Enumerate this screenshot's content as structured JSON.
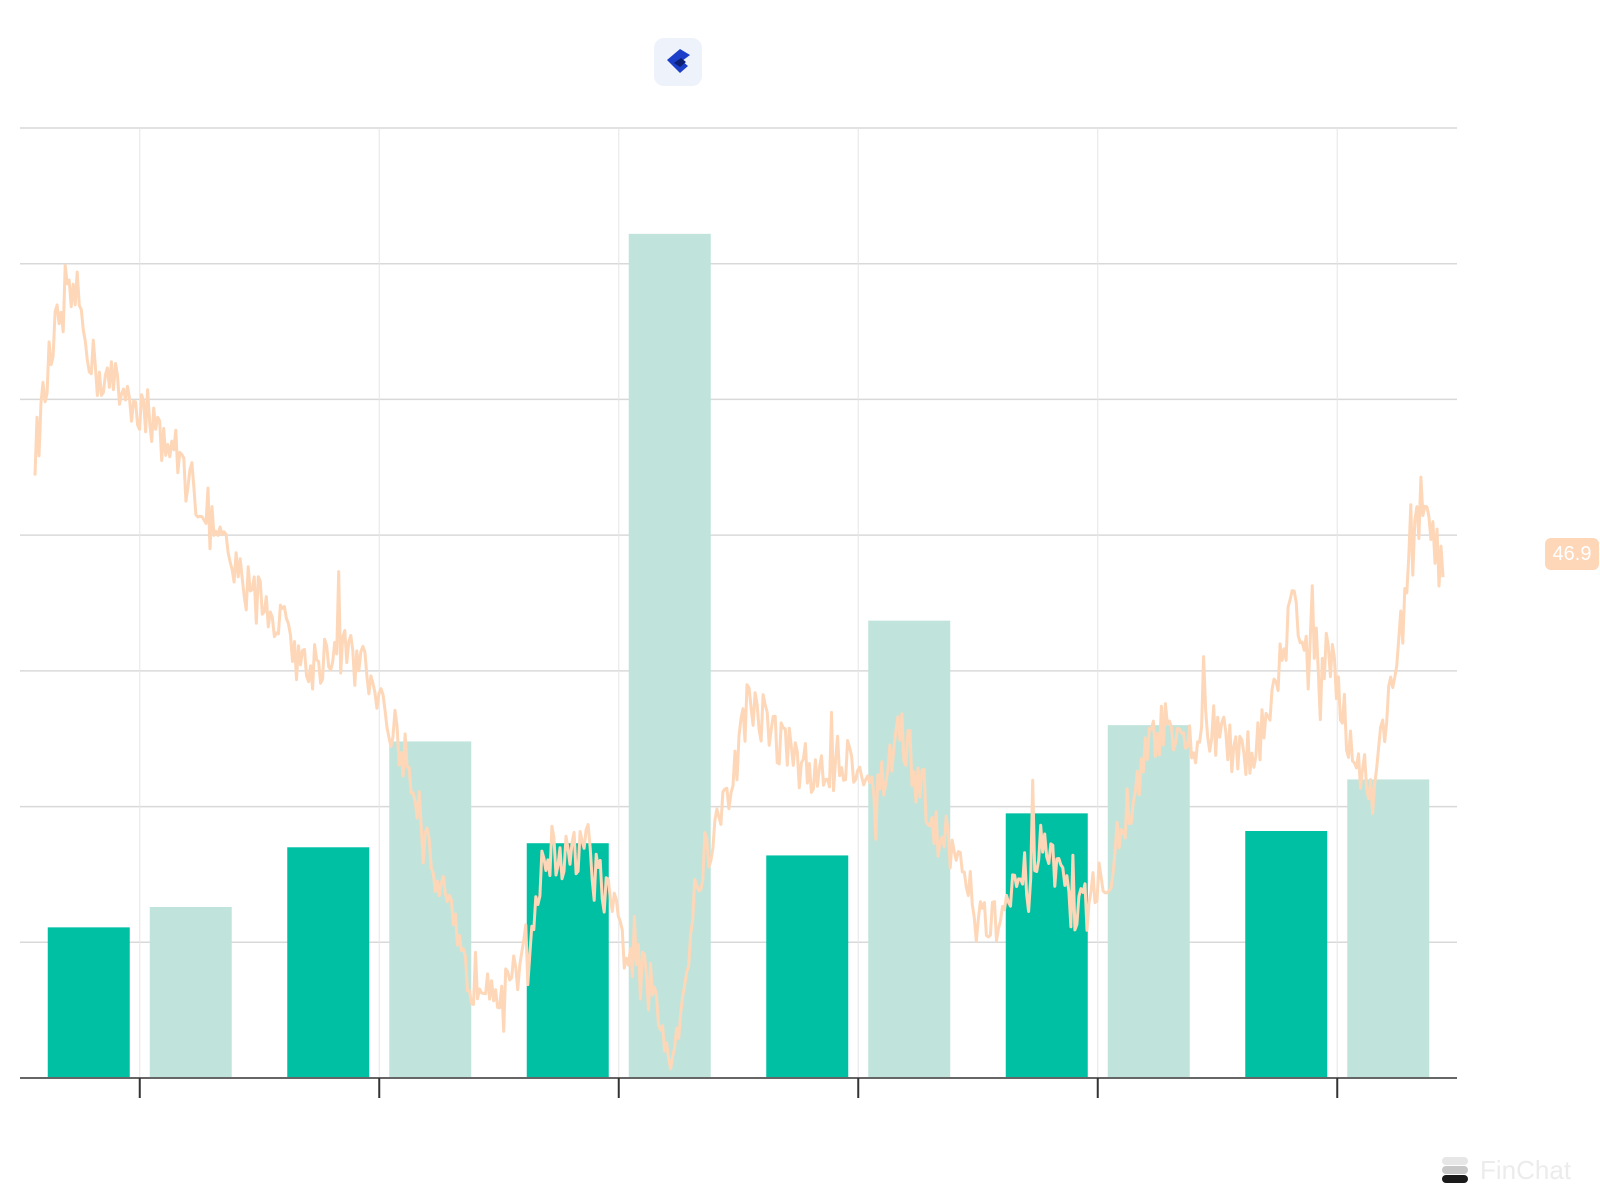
{
  "colors": {
    "bar_primary": "#00c0a3",
    "bar_secondary": "#c0e4db",
    "line": "#fdd7b8",
    "badge_bg": "#fdd7b8",
    "grid": "#d9d9d9",
    "axis": "#666666",
    "logo_blue": "#1b3fc9",
    "logo_dark": "#0b1f73"
  },
  "header": {
    "logo_icon": "company-logo-icon"
  },
  "price_badge": {
    "label": "46.9"
  },
  "watermark": {
    "label": "FinChat",
    "icon": "finchat-logo-icon"
  },
  "chart_data": {
    "type": "bar",
    "grid": true,
    "legend": "none",
    "bar_axis": {
      "ylim": [
        0,
        7
      ]
    },
    "line_axis": {
      "ylim": [
        10,
        80
      ]
    },
    "groups": 6,
    "series": [
      {
        "values": [
          1.11,
          1.7,
          1.73,
          1.64,
          1.95,
          1.82
        ]
      },
      {
        "values": [
          1.26,
          2.48,
          6.22,
          3.37,
          2.6,
          2.2
        ]
      }
    ],
    "line_series": {
      "points": 700,
      "last_value": 46.9,
      "anchors": [
        [
          0,
          56
        ],
        [
          10,
          65
        ],
        [
          20,
          68
        ],
        [
          30,
          62
        ],
        [
          50,
          60
        ],
        [
          70,
          56
        ],
        [
          80,
          53
        ],
        [
          100,
          47
        ],
        [
          120,
          44
        ],
        [
          135,
          40
        ],
        [
          150,
          42
        ],
        [
          170,
          39
        ],
        [
          180,
          35
        ],
        [
          190,
          31
        ],
        [
          200,
          25
        ],
        [
          215,
          17
        ],
        [
          225,
          18
        ],
        [
          235,
          16
        ],
        [
          245,
          20
        ],
        [
          255,
          27
        ],
        [
          265,
          26
        ],
        [
          275,
          27
        ],
        [
          285,
          23
        ],
        [
          295,
          19
        ],
        [
          305,
          17
        ],
        [
          315,
          12
        ],
        [
          320,
          14
        ],
        [
          330,
          25
        ],
        [
          345,
          31
        ],
        [
          355,
          38
        ],
        [
          365,
          36
        ],
        [
          375,
          34
        ],
        [
          390,
          32
        ],
        [
          405,
          34
        ],
        [
          420,
          31
        ],
        [
          430,
          36
        ],
        [
          445,
          29
        ],
        [
          460,
          26
        ],
        [
          475,
          21
        ],
        [
          490,
          24
        ],
        [
          500,
          27
        ],
        [
          510,
          24
        ],
        [
          520,
          22
        ],
        [
          535,
          26
        ],
        [
          550,
          33
        ],
        [
          560,
          36
        ],
        [
          570,
          34
        ],
        [
          585,
          36
        ],
        [
          600,
          33
        ],
        [
          615,
          37
        ],
        [
          625,
          45
        ],
        [
          635,
          42
        ],
        [
          645,
          41
        ],
        [
          655,
          34
        ],
        [
          665,
          31
        ],
        [
          680,
          44
        ],
        [
          690,
          53
        ],
        [
          700,
          46.9
        ]
      ]
    }
  }
}
